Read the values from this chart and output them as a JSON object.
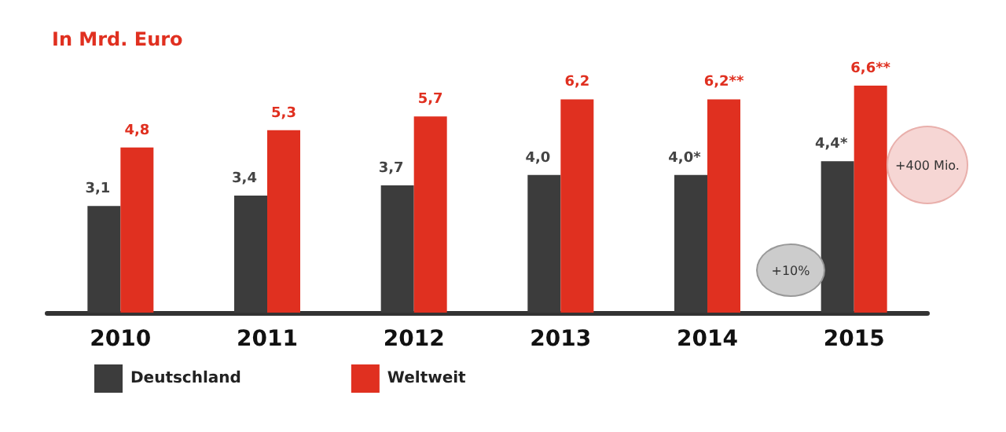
{
  "chart_data": {
    "type": "bar",
    "title": "In Mrd. Euro",
    "categories": [
      "2010",
      "2011",
      "2012",
      "2013",
      "2014",
      "2015"
    ],
    "series": [
      {
        "name": "Deutschland",
        "color": "#3c3c3c",
        "values": [
          3.1,
          3.4,
          3.7,
          4.0,
          4.0,
          4.4
        ],
        "value_labels": [
          "3,1",
          "3,4",
          "3,7",
          "4,0",
          "4,0*",
          "4,4*"
        ]
      },
      {
        "name": "Weltweit",
        "color": "#e03020",
        "values": [
          4.8,
          5.3,
          5.7,
          6.2,
          6.2,
          6.6
        ],
        "value_labels": [
          "4,8",
          "5,3",
          "5,7",
          "6,2",
          "6,2**",
          "6,6**"
        ]
      }
    ],
    "annotations": [
      "+10%",
      "+400 Mio."
    ],
    "legend": "bottom left"
  }
}
